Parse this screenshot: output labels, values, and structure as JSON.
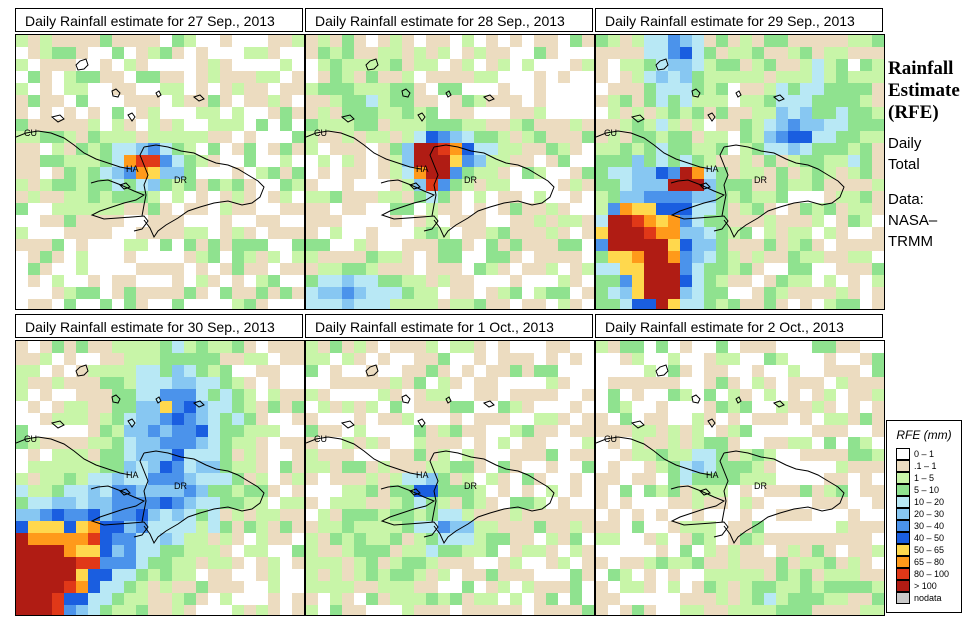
{
  "panels": [
    {
      "title": "Daily Rainfall estimate for  27 Sep., 2013",
      "scenario": "p27"
    },
    {
      "title": "Daily Rainfall estimate for  28 Sep., 2013",
      "scenario": "p28"
    },
    {
      "title": "Daily Rainfall estimate for  29 Sep., 2013",
      "scenario": "p29"
    },
    {
      "title": "Daily Rainfall estimate for  30 Sep., 2013",
      "scenario": "p30"
    },
    {
      "title": "Daily Rainfall estimate for  1 Oct., 2013",
      "scenario": "p01"
    },
    {
      "title": "Daily Rainfall estimate for  2 Oct., 2013",
      "scenario": "p02"
    }
  ],
  "map_labels": {
    "cuba": "CU",
    "haiti": "HA",
    "dominican_republic": "DR"
  },
  "side": {
    "title_lines": [
      "Rainfall",
      "Estimate",
      "(RFE)"
    ],
    "daily_lines": [
      "Daily",
      "Total"
    ],
    "data_lines": [
      "Data:",
      "NASA–",
      "TRMM"
    ]
  },
  "legend": {
    "title": "RFE (mm)",
    "items": [
      {
        "label": "0 – 1",
        "color": "#ffffff"
      },
      {
        "label": ".1 – 1",
        "color": "#ecdcc0"
      },
      {
        "label": "1 – 5",
        "color": "#c8f5a8"
      },
      {
        "label": "5 – 10",
        "color": "#8fe28f"
      },
      {
        "label": "10 – 20",
        "color": "#b8e8f5"
      },
      {
        "label": "20 – 30",
        "color": "#87c7f2"
      },
      {
        "label": "30 – 40",
        "color": "#4b93eb"
      },
      {
        "label": "40 – 50",
        "color": "#1a5ee0"
      },
      {
        "label": "50 – 65",
        "color": "#ffd84d"
      },
      {
        "label": "65 – 80",
        "color": "#ff9a1a"
      },
      {
        "label": "80 – 100",
        "color": "#e03818"
      },
      {
        "label": "> 100",
        "color": "#b01c14"
      },
      {
        "label": "nodata",
        "color": "#c8c8c8"
      }
    ]
  }
}
